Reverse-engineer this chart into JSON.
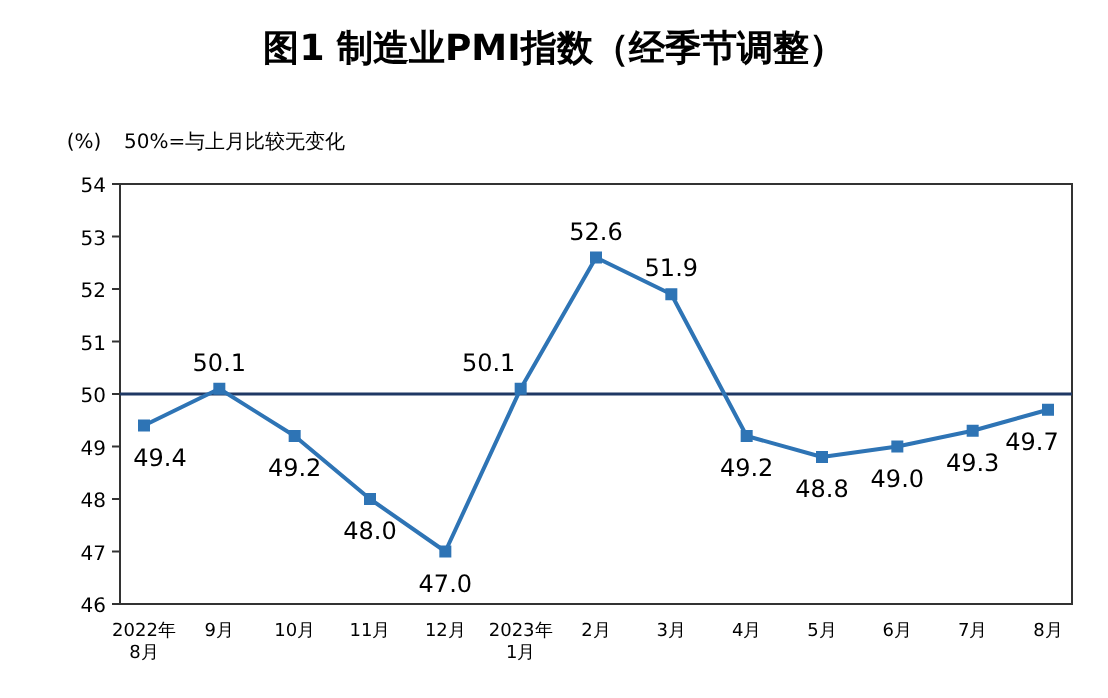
{
  "chart_data": {
    "type": "line",
    "title": "图1 制造业PMI指数（经季节调整）",
    "ylabel": "(%)",
    "annotations": [
      "50%=与上月比较无变化"
    ],
    "categories": [
      "2022年\n8月",
      "9月",
      "10月",
      "11月",
      "12月",
      "2023年\n1月",
      "2月",
      "3月",
      "4月",
      "5月",
      "6月",
      "7月",
      "8月"
    ],
    "series": [
      {
        "color": "#2e74b5",
        "values": [
          49.4,
          50.1,
          49.2,
          48.0,
          47.0,
          50.1,
          52.6,
          51.9,
          49.2,
          48.8,
          49.0,
          49.3,
          49.7
        ],
        "value_labels": [
          "49.4",
          "50.1",
          "49.2",
          "48.0",
          "47.0",
          "50.1",
          "52.6",
          "51.9",
          "49.2",
          "48.8",
          "49.0",
          "49.3",
          "49.7"
        ]
      }
    ],
    "ylim": [
      46,
      54
    ],
    "yticks": [
      46,
      47,
      48,
      49,
      50,
      51,
      52,
      53,
      54
    ],
    "ref_lines": [
      {
        "axis": "y",
        "value": 50,
        "color": "#1f3864"
      }
    ],
    "marker": "square"
  }
}
